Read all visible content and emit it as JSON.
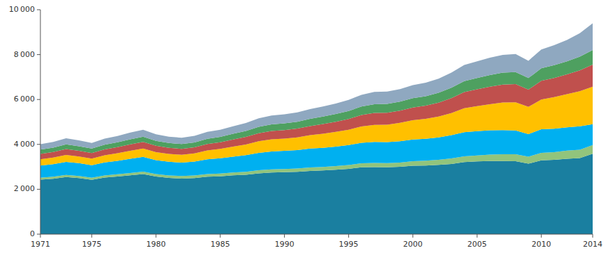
{
  "chart_data": {
    "type": "area",
    "stacked": true,
    "grid": false,
    "x": [
      1971,
      1972,
      1973,
      1974,
      1975,
      1976,
      1977,
      1978,
      1979,
      1980,
      1981,
      1982,
      1983,
      1984,
      1985,
      1986,
      1987,
      1988,
      1989,
      1990,
      1991,
      1992,
      1993,
      1994,
      1995,
      1996,
      1997,
      1998,
      1999,
      2000,
      2001,
      2002,
      2003,
      2004,
      2005,
      2006,
      2007,
      2008,
      2009,
      2010,
      2011,
      2012,
      2013,
      2014
    ],
    "series": [
      {
        "color": "#1a7fa0",
        "values": [
          2430,
          2470,
          2550,
          2500,
          2420,
          2520,
          2570,
          2620,
          2680,
          2570,
          2510,
          2480,
          2500,
          2560,
          2580,
          2620,
          2650,
          2710,
          2750,
          2760,
          2780,
          2820,
          2840,
          2870,
          2910,
          2980,
          2990,
          2980,
          3000,
          3050,
          3060,
          3090,
          3130,
          3210,
          3240,
          3260,
          3260,
          3250,
          3140,
          3290,
          3310,
          3360,
          3390,
          3580
        ]
      },
      {
        "color": "#92c47c",
        "values": [
          88,
          90,
          93,
          93,
          95,
          98,
          100,
          103,
          106,
          107,
          109,
          112,
          115,
          119,
          123,
          127,
          131,
          135,
          139,
          144,
          149,
          154,
          159,
          165,
          170,
          176,
          181,
          186,
          192,
          202,
          212,
          226,
          241,
          256,
          270,
          284,
          299,
          309,
          315,
          330,
          345,
          360,
          375,
          390
        ]
      },
      {
        "color": "#00b0f0",
        "values": [
          540,
          560,
          580,
          570,
          555,
          580,
          600,
          635,
          655,
          620,
          605,
          595,
          620,
          658,
          678,
          708,
          738,
          778,
          798,
          808,
          818,
          838,
          850,
          868,
          888,
          918,
          938,
          938,
          950,
          968,
          978,
          998,
          1038,
          1078,
          1080,
          1082,
          1080,
          1062,
          1002,
          1052,
          1042,
          1042,
          1042,
          932
        ]
      },
      {
        "color": "#ffc000",
        "values": [
          280,
          292,
          310,
          300,
          295,
          318,
          338,
          360,
          376,
          358,
          348,
          348,
          362,
          396,
          416,
          446,
          476,
          516,
          536,
          546,
          566,
          596,
          626,
          656,
          686,
          726,
          756,
          776,
          816,
          856,
          886,
          926,
          986,
          1066,
          1116,
          1166,
          1226,
          1256,
          1216,
          1326,
          1406,
          1476,
          1566,
          1666
        ]
      },
      {
        "color": "#c0504d",
        "values": [
          238,
          248,
          262,
          253,
          248,
          262,
          272,
          286,
          296,
          282,
          272,
          268,
          272,
          286,
          296,
          316,
          336,
          360,
          375,
          380,
          390,
          410,
          430,
          450,
          480,
          510,
          534,
          534,
          544,
          569,
          589,
          619,
          669,
          719,
          749,
          779,
          799,
          809,
          769,
          839,
          859,
          879,
          929,
          989
        ]
      },
      {
        "color": "#4ea060",
        "values": [
          192,
          197,
          207,
          202,
          200,
          207,
          214,
          224,
          232,
          222,
          217,
          214,
          220,
          232,
          242,
          254,
          267,
          284,
          295,
          299,
          307,
          320,
          332,
          344,
          357,
          377,
          392,
          392,
          400,
          414,
          424,
          440,
          464,
          492,
          507,
          522,
          532,
          537,
          514,
          552,
          567,
          582,
          612,
          647
        ]
      },
      {
        "color": "#8fa8c0",
        "values": [
          242,
          252,
          267,
          260,
          254,
          270,
          280,
          296,
          307,
          292,
          284,
          280,
          288,
          304,
          317,
          335,
          355,
          380,
          395,
          400,
          412,
          432,
          452,
          470,
          492,
          522,
          547,
          547,
          559,
          584,
          602,
          630,
          668,
          716,
          743,
          770,
          792,
          800,
          772,
          842,
          892,
          952,
          1042,
          1192
        ]
      }
    ],
    "xlim": [
      1971,
      2014
    ],
    "xticks": [
      1971,
      1975,
      1980,
      1985,
      1990,
      1995,
      2000,
      2005,
      2010,
      2014
    ],
    "ylim": [
      0,
      10000
    ],
    "yticks": [
      0,
      {
        "value": 2000,
        "label": "2 000"
      },
      {
        "value": 4000,
        "label": "4 000"
      },
      {
        "value": 6000,
        "label": "6 000"
      },
      {
        "value": 8000,
        "label": "8 000"
      },
      {
        "value": 10000,
        "label": "10 000"
      }
    ]
  }
}
